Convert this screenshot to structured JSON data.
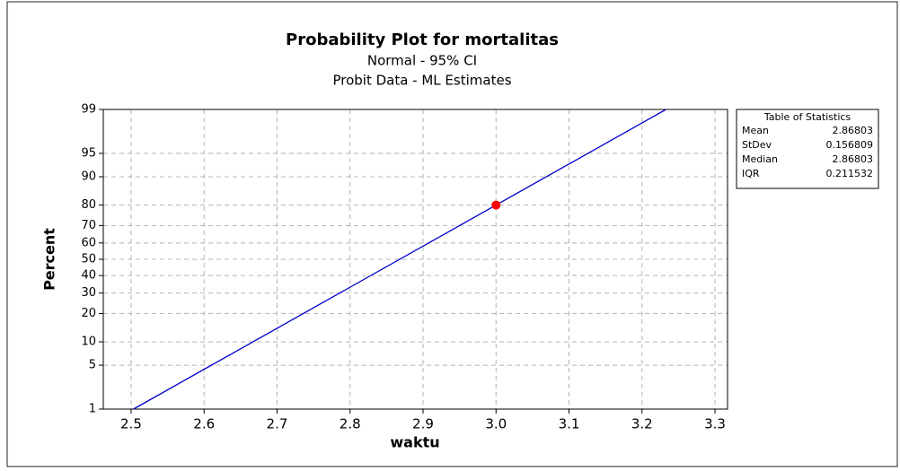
{
  "chart_data": {
    "type": "probability",
    "title": "Probability Plot for mortalitas",
    "subtitle": "Normal - 95% CI",
    "subtitle2": "Probit Data - ML Estimates",
    "xlabel": "waktu",
    "ylabel": "Percent",
    "yscale": "normal",
    "x": [
      3.0
    ],
    "values": [
      80
    ],
    "point_color": "#ff0000",
    "line_color": "#0000cc",
    "xlim": [
      2.4619,
      3.3172
    ],
    "xticks": [
      2.5,
      2.6,
      2.7,
      2.8,
      2.9,
      {
        "value": 3.0,
        "label": "3.0"
      },
      3.1,
      3.2,
      3.3
    ],
    "ylim": [
      1,
      99
    ],
    "yticks": [
      1,
      5,
      10,
      20,
      30,
      40,
      50,
      60,
      70,
      80,
      90,
      95,
      99
    ],
    "grid": true,
    "statistics_title": "Table of Statistics",
    "statistics": [
      {
        "name": "Mean",
        "value": 2.86803
      },
      {
        "name": "StDev",
        "value": 0.156809
      },
      {
        "name": "Median",
        "value": 2.86803
      },
      {
        "name": "IQR",
        "value": 0.211532
      }
    ]
  }
}
